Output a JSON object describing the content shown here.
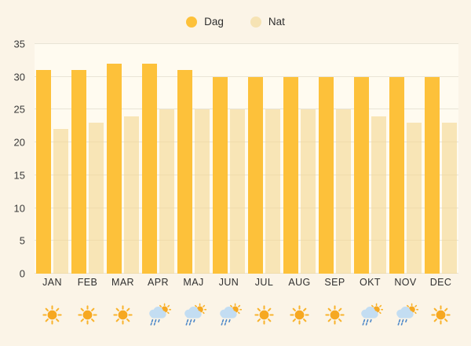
{
  "legend": {
    "items": [
      {
        "label": "Dag",
        "color": "#FDC13A"
      },
      {
        "label": "Nat",
        "color": "#F6E3B4"
      }
    ]
  },
  "chart_data": {
    "type": "bar",
    "title": "",
    "xlabel": "",
    "ylabel": "",
    "categories": [
      "JAN",
      "FEB",
      "MAR",
      "APR",
      "MAJ",
      "JUN",
      "JUL",
      "AUG",
      "SEP",
      "OKT",
      "NOV",
      "DEC"
    ],
    "series": [
      {
        "name": "Dag",
        "color": "#FDC13A",
        "values": [
          31,
          31,
          32,
          32,
          31,
          30,
          30,
          30,
          30,
          30,
          30,
          30
        ]
      },
      {
        "name": "Nat",
        "color": "#F6E3B4",
        "values": [
          22,
          23,
          24,
          25,
          25,
          25,
          25,
          25,
          25,
          24,
          23,
          23
        ]
      }
    ],
    "ylim": [
      0,
      35
    ],
    "yticks": [
      0,
      5,
      10,
      15,
      20,
      25,
      30,
      35
    ],
    "grid": true,
    "legend_position": "top-center",
    "weather_icons": [
      "sun",
      "sun",
      "sun",
      "sun-rain",
      "sun-rain",
      "sun-rain",
      "sun",
      "sun",
      "sun",
      "sun-rain",
      "sun-rain",
      "sun"
    ]
  },
  "colors": {
    "page_bg": "#FBF4E7",
    "plot_bg": "#FFFBF0",
    "gridline": "#E9E4D6",
    "bar_dag": "#FDC13A",
    "bar_nat": "#F6E3B4",
    "text": "#2f2f2f",
    "icon_sun": "#F6A821",
    "icon_sun_rays": "#F9B32C",
    "icon_cloud": "#C3DDF2",
    "icon_rain": "#4A86C8"
  }
}
